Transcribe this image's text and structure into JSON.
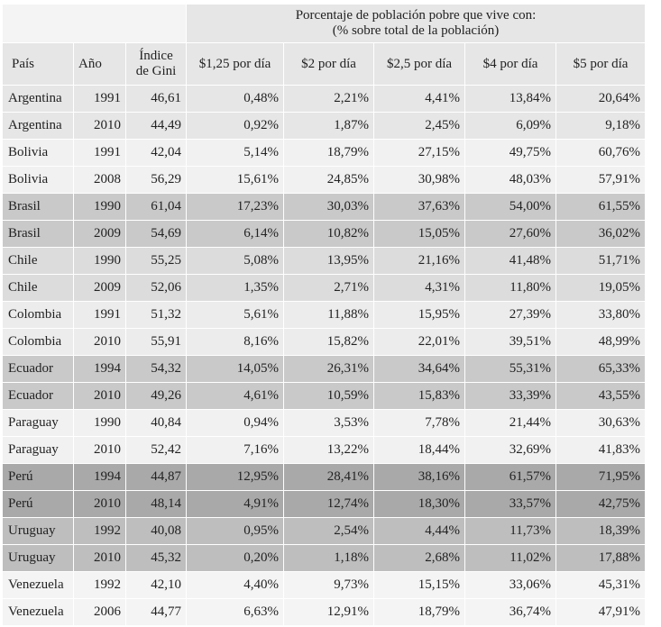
{
  "header": {
    "group": [
      "Porcentaje de población pobre que vive con:",
      "(% sobre total de la población)"
    ],
    "columns": [
      [
        "País"
      ],
      [
        "Año"
      ],
      [
        "Índice",
        "de Gini"
      ],
      [
        "$1,25 por día"
      ],
      [
        "$2 por día"
      ],
      [
        "$2,5 por día"
      ],
      [
        "$4 por día"
      ],
      [
        "$5 por día"
      ]
    ]
  },
  "table": {
    "rows": [
      [
        "Argentina",
        "1991",
        "46,61",
        "0,48%",
        "2,21%",
        "4,41%",
        "13,84%",
        "20,64%"
      ],
      [
        "Argentina",
        "2010",
        "44,49",
        "0,92%",
        "1,87%",
        "2,45%",
        "6,09%",
        "9,18%"
      ],
      [
        "Bolivia",
        "1991",
        "42,04",
        "5,14%",
        "18,79%",
        "27,15%",
        "49,75%",
        "60,76%"
      ],
      [
        "Bolivia",
        "2008",
        "56,29",
        "15,61%",
        "24,85%",
        "30,98%",
        "48,03%",
        "57,91%"
      ],
      [
        "Brasil",
        "1990",
        "61,04",
        "17,23%",
        "30,03%",
        "37,63%",
        "54,00%",
        "61,55%"
      ],
      [
        "Brasil",
        "2009",
        "54,69",
        "6,14%",
        "10,82%",
        "15,05%",
        "27,60%",
        "36,02%"
      ],
      [
        "Chile",
        "1990",
        "55,25",
        "5,08%",
        "13,95%",
        "21,16%",
        "41,48%",
        "51,71%"
      ],
      [
        "Chile",
        "2009",
        "52,06",
        "1,35%",
        "2,71%",
        "4,31%",
        "11,80%",
        "19,05%"
      ],
      [
        "Colombia",
        "1991",
        "51,32",
        "5,61%",
        "11,88%",
        "15,95%",
        "27,39%",
        "33,80%"
      ],
      [
        "Colombia",
        "2010",
        "55,91",
        "8,16%",
        "15,82%",
        "22,01%",
        "39,51%",
        "48,99%"
      ],
      [
        "Ecuador",
        "1994",
        "54,32",
        "14,05%",
        "26,31%",
        "34,64%",
        "55,31%",
        "65,33%"
      ],
      [
        "Ecuador",
        "2010",
        "49,26",
        "4,61%",
        "10,59%",
        "15,83%",
        "33,39%",
        "43,55%"
      ],
      [
        "Paraguay",
        "1990",
        "40,84",
        "0,94%",
        "3,53%",
        "7,78%",
        "21,44%",
        "30,63%"
      ],
      [
        "Paraguay",
        "2010",
        "52,42",
        "7,16%",
        "13,22%",
        "18,44%",
        "32,69%",
        "41,83%"
      ],
      [
        "Perú",
        "1994",
        "44,87",
        "12,95%",
        "28,41%",
        "38,16%",
        "61,57%",
        "71,95%"
      ],
      [
        "Perú",
        "2010",
        "48,14",
        "4,91%",
        "12,74%",
        "18,30%",
        "33,57%",
        "42,75%"
      ],
      [
        "Uruguay",
        "1992",
        "40,08",
        "0,95%",
        "2,54%",
        "4,44%",
        "11,73%",
        "18,39%"
      ],
      [
        "Uruguay",
        "2010",
        "45,32",
        "0,20%",
        "1,18%",
        "2,68%",
        "11,02%",
        "17,88%"
      ],
      [
        "Venezuela",
        "1992",
        "42,10",
        "4,40%",
        "9,73%",
        "15,15%",
        "33,06%",
        "45,31%"
      ],
      [
        "Venezuela",
        "2006",
        "44,77",
        "6,63%",
        "12,91%",
        "18,79%",
        "36,74%",
        "47,91%"
      ]
    ]
  }
}
